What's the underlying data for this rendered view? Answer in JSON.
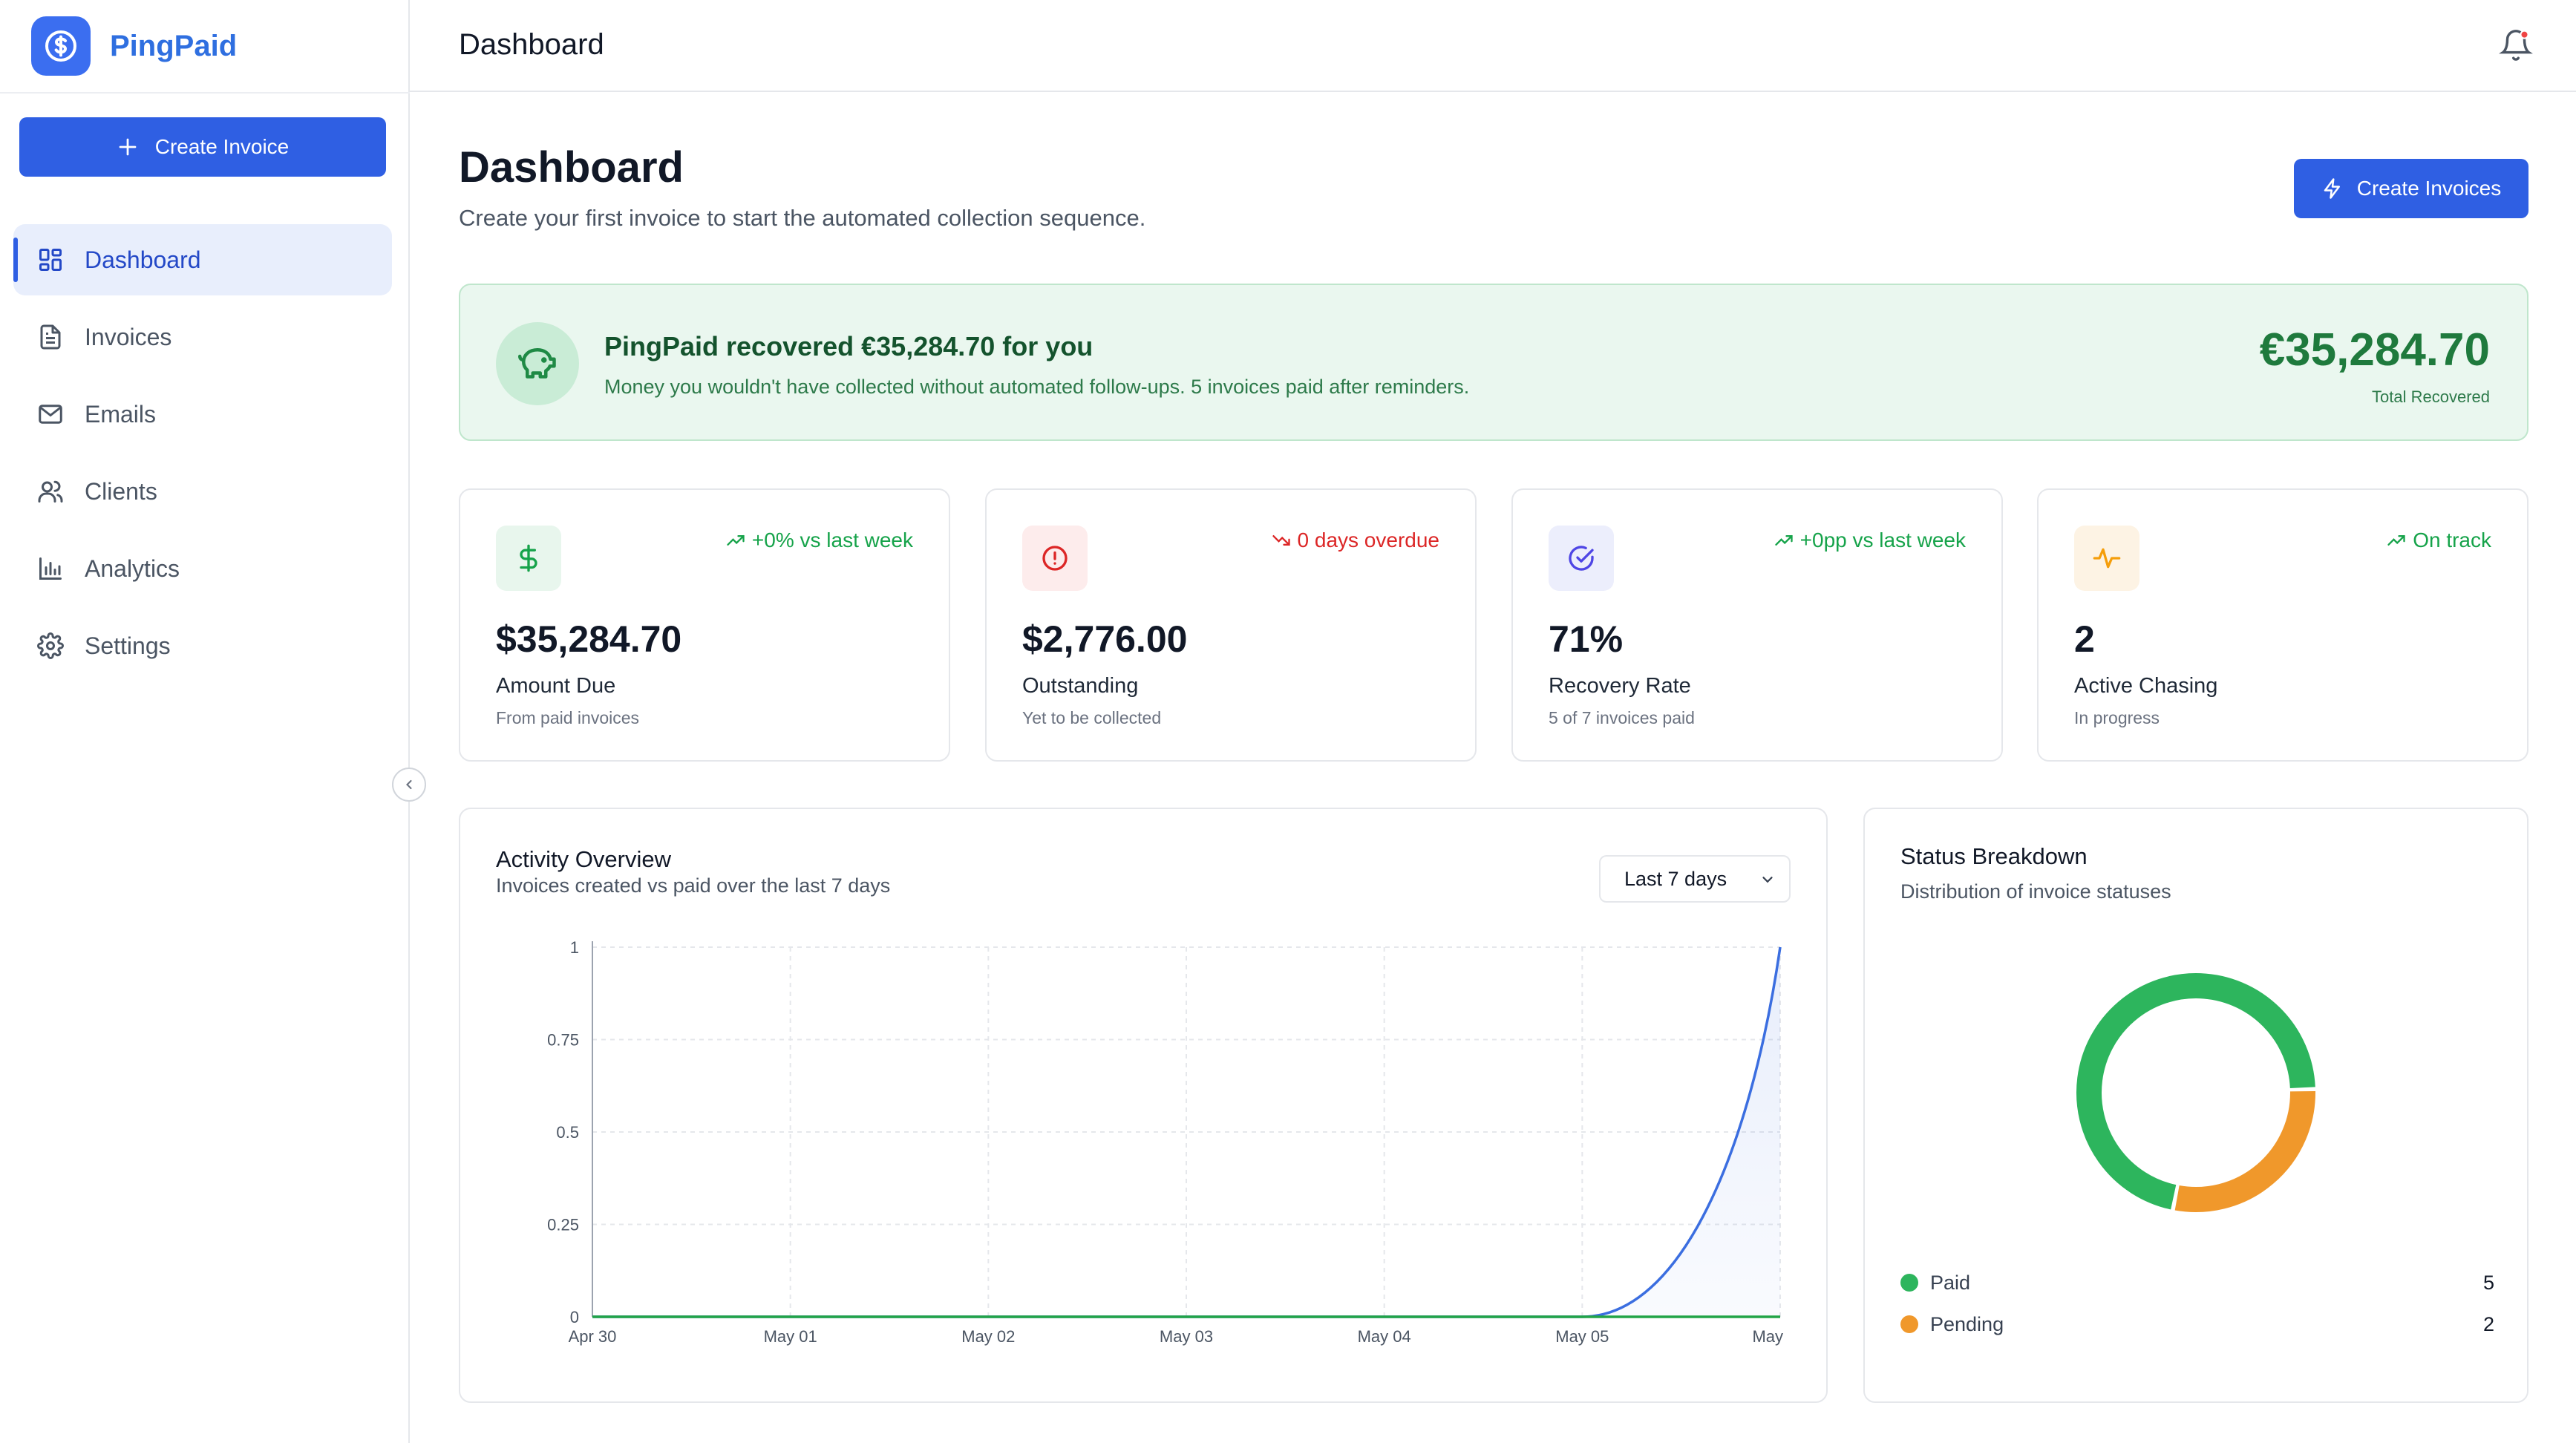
{
  "brand": {
    "name": "PingPaid",
    "icon": "dollar-circle-icon",
    "color": "#3b6ef0"
  },
  "sidebar": {
    "create_label": "Create Invoice",
    "items": [
      {
        "label": "Dashboard",
        "icon": "dashboard-icon",
        "active": true
      },
      {
        "label": "Invoices",
        "icon": "file-icon"
      },
      {
        "label": "Emails",
        "icon": "mail-icon"
      },
      {
        "label": "Clients",
        "icon": "users-icon"
      },
      {
        "label": "Analytics",
        "icon": "bar-chart-icon"
      },
      {
        "label": "Settings",
        "icon": "gear-icon"
      }
    ]
  },
  "header": {
    "title": "Dashboard",
    "has_notification": true
  },
  "page": {
    "title": "Dashboard",
    "subtitle": "Create your first invoice to start the automated collection sequence.",
    "action_label": "Create Invoices"
  },
  "banner": {
    "title": "PingPaid recovered €35,284.70 for you",
    "description": "Money you wouldn't have collected without automated follow-ups. 5 invoices paid after reminders.",
    "amount": "€35,284.70",
    "amount_label": "Total Recovered"
  },
  "stats": [
    {
      "value": "$35,284.70",
      "label": "Amount Due",
      "sub": "From paid invoices",
      "trend": "+0% vs last week",
      "trend_dir": "up",
      "icon": "dollar-icon",
      "accent": "#16a34a"
    },
    {
      "value": "$2,776.00",
      "label": "Outstanding",
      "sub": "Yet to be collected",
      "trend": "0 days overdue",
      "trend_dir": "down",
      "icon": "alert-circle-icon",
      "accent": "#dc2626"
    },
    {
      "value": "71%",
      "label": "Recovery Rate",
      "sub": "5 of 7 invoices paid",
      "trend": "+0pp vs last week",
      "trend_dir": "up",
      "icon": "check-circle-icon",
      "accent": "#4f46e5"
    },
    {
      "value": "2",
      "label": "Active Chasing",
      "sub": "In progress",
      "trend": "On track",
      "trend_dir": "up",
      "icon": "activity-icon",
      "accent": "#f59e0b"
    }
  ],
  "activity": {
    "title": "Activity Overview",
    "subtitle": "Invoices created vs paid over the last 7 days",
    "range_label": "Last 7 days"
  },
  "status": {
    "title": "Status Breakdown",
    "subtitle": "Distribution of invoice statuses"
  },
  "chart_data": [
    {
      "type": "area",
      "categories": [
        "Apr 30",
        "May 01",
        "May 02",
        "May 03",
        "May 04",
        "May 05",
        "May"
      ],
      "y_ticks": [
        "1",
        "0.75",
        "0.5",
        "0.25",
        "0"
      ],
      "ylim": [
        0,
        1
      ],
      "grid": true,
      "series": [
        {
          "values": [
            0,
            0,
            0,
            0,
            0,
            0,
            1
          ],
          "color": "#3b6ee0"
        },
        {
          "values": [
            0,
            0,
            0,
            0,
            0,
            0,
            0
          ],
          "color": "#22a447"
        }
      ]
    },
    {
      "type": "pie",
      "donut": true,
      "labels": [
        "Paid",
        "Pending"
      ],
      "values": [
        5,
        2
      ],
      "colors": [
        "#2db55d",
        "#f0982b"
      ]
    }
  ]
}
